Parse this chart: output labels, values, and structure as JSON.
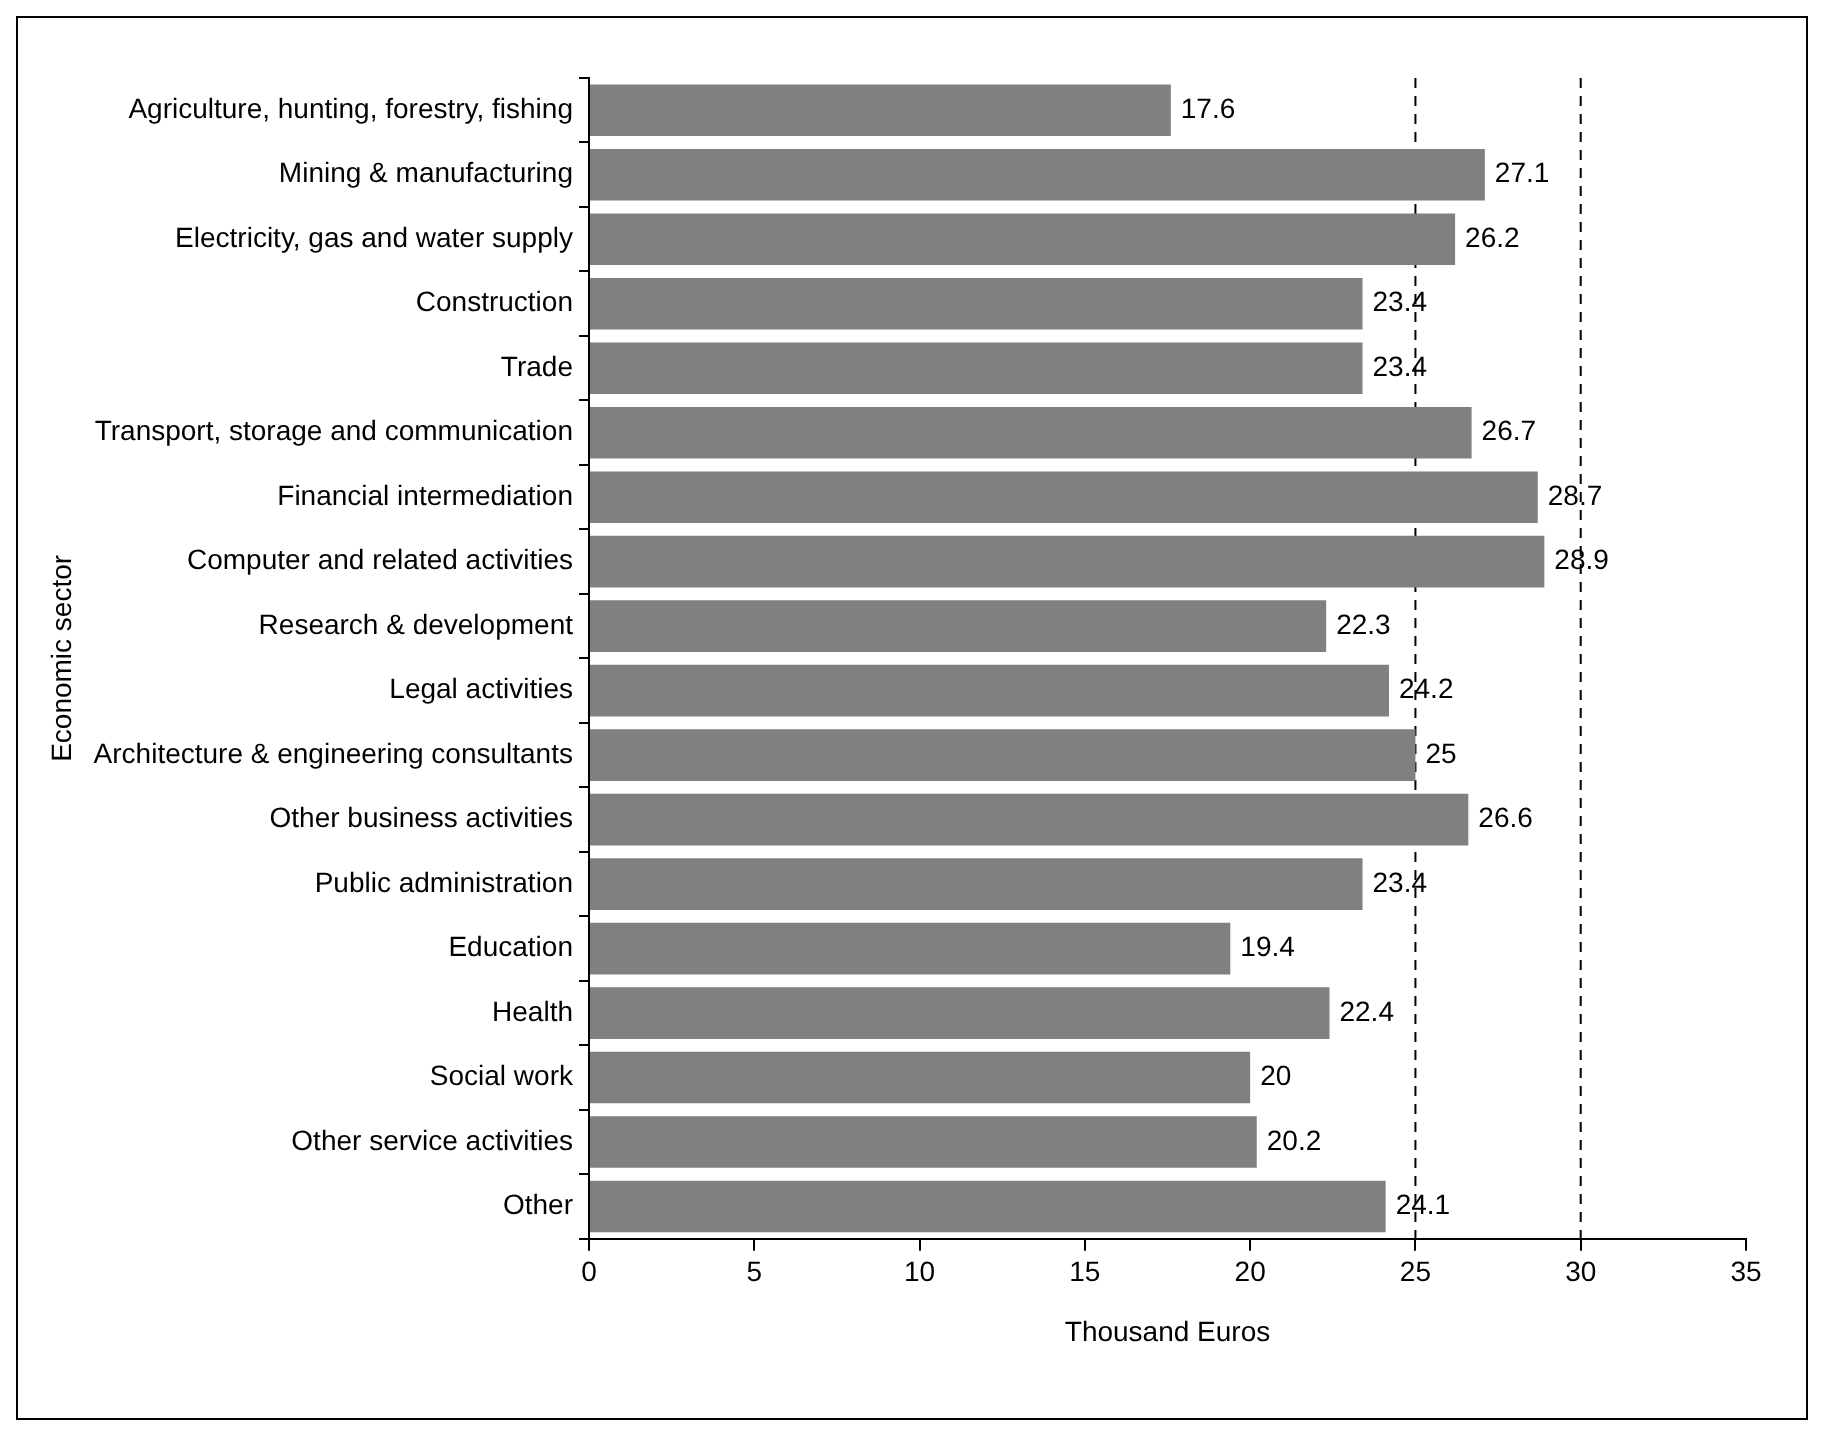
{
  "chart_data": {
    "type": "bar",
    "orientation": "horizontal",
    "xlabel": "Thousand Euros",
    "ylabel": "Economic sector",
    "categories": [
      "Agriculture, hunting, forestry, fishing",
      "Mining & manufacturing",
      "Electricity, gas and water supply",
      "Construction",
      "Trade",
      "Transport, storage and communication",
      "Financial intermediation",
      "Computer and related activities",
      "Research & development",
      "Legal activities",
      "Architecture & engineering consultants",
      "Other business activities",
      "Public administration",
      "Education",
      "Health",
      "Social work",
      "Other service activities",
      "Other"
    ],
    "values": [
      17.6,
      27.1,
      26.2,
      23.4,
      23.4,
      26.7,
      28.7,
      28.9,
      22.3,
      24.2,
      25,
      26.6,
      23.4,
      19.4,
      22.4,
      20,
      20.2,
      24.1
    ],
    "color": "#808080",
    "xlim": [
      0,
      35
    ],
    "xticks": [
      0,
      5,
      10,
      15,
      20,
      25,
      30,
      35
    ],
    "ref_lines": [
      {
        "axis": "x",
        "value": 25,
        "line_style": "dashed"
      },
      {
        "axis": "x",
        "value": 30,
        "line_style": "dashed"
      }
    ],
    "data_labels": true,
    "grid": false,
    "legend": false
  }
}
